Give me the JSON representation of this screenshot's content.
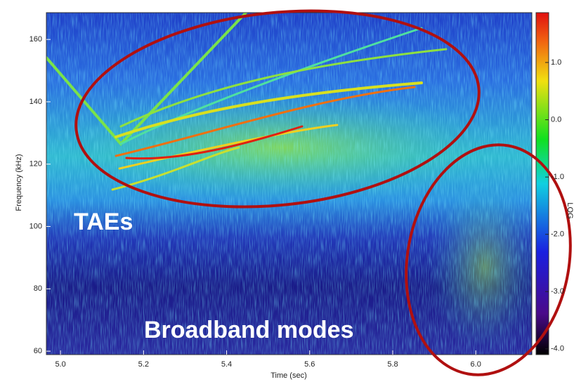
{
  "chart_data": {
    "type": "heatmap",
    "x_label": "Time (sec)",
    "y_label": "Frequency (kHz)",
    "colorbar_label": "LOG",
    "annotations": [
      "TAEs",
      "Broadband modes"
    ],
    "xlim": [
      4.966,
      6.135
    ],
    "xticks": [
      {
        "value": 5.0,
        "label": "5.0"
      },
      {
        "value": 5.2,
        "label": "5.2"
      },
      {
        "value": 5.4,
        "label": "5.4"
      },
      {
        "value": 5.6,
        "label": "5.6"
      },
      {
        "value": 5.8,
        "label": "5.8"
      },
      {
        "value": 6.0,
        "label": "6.0"
      }
    ],
    "ylim": [
      58.9,
      168.6
    ],
    "yticks": [
      60,
      80,
      100,
      120,
      140,
      160
    ],
    "clim": [
      -4.1,
      1.87
    ],
    "cticks": [
      {
        "value": 1,
        "label": "1.0"
      },
      {
        "value": 0,
        "label": "0.0"
      },
      {
        "value": -1,
        "label": "-1.0"
      },
      {
        "value": -2,
        "label": "-2.0"
      },
      {
        "value": -3,
        "label": "-3.0"
      },
      {
        "value": -4,
        "label": "-4.0"
      }
    ]
  }
}
